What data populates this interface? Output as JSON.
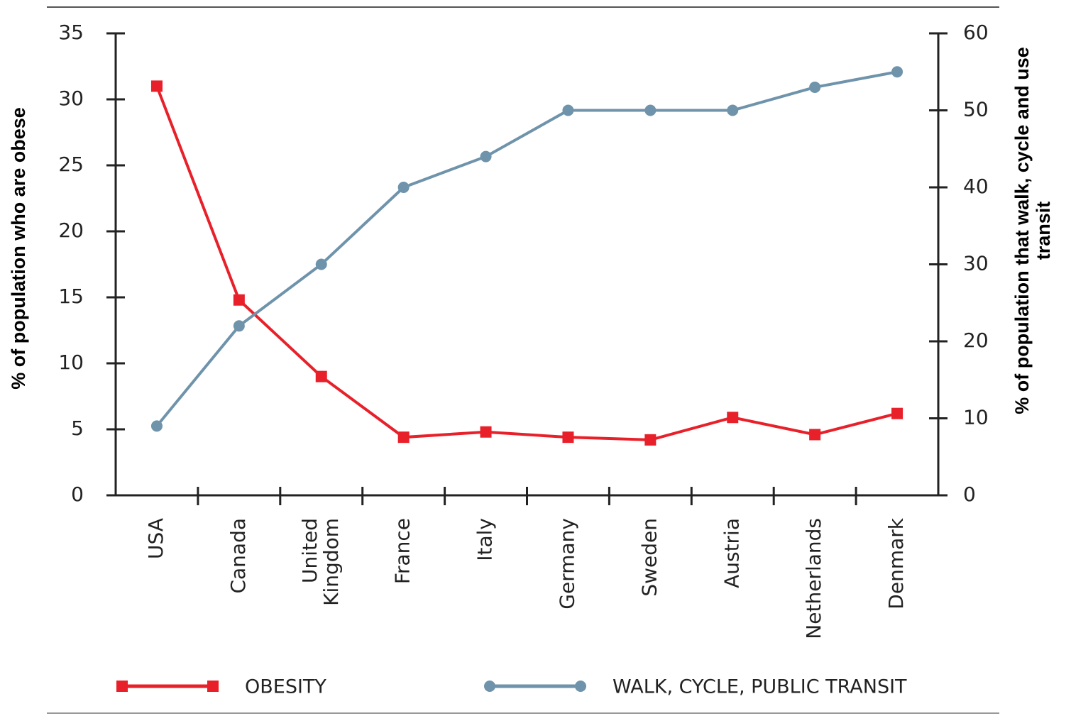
{
  "chart_data": {
    "type": "line",
    "categories": [
      "USA",
      "Canada",
      "United Kingdom",
      "France",
      "Italy",
      "Germany",
      "Sweden",
      "Austria",
      "Netherlands",
      "Denmark"
    ],
    "series": [
      {
        "name": "OBESITY",
        "color": "#e8202a",
        "marker": "square",
        "values": [
          31,
          14.8,
          9,
          4.4,
          4.8,
          4.4,
          4.2,
          5.9,
          4.6,
          6.2
        ]
      },
      {
        "name": "WALK, CYCLE, PUBLIC TRANSIT",
        "color": "#6e93ab",
        "marker": "circle",
        "axis": "y2",
        "values": [
          9,
          22,
          30,
          40,
          44,
          50,
          50,
          50,
          53,
          55
        ]
      }
    ],
    "ylabel": "% of population who are obese",
    "y2label": "% of population that walk, cycle and use transit",
    "ylim": [
      0,
      35
    ],
    "yticks": [
      0,
      5,
      10,
      15,
      20,
      25,
      30,
      35
    ],
    "y2lim": [
      0,
      60
    ],
    "y2ticks": [
      0,
      10,
      20,
      30,
      40,
      50,
      60
    ],
    "legend": "bottom"
  }
}
